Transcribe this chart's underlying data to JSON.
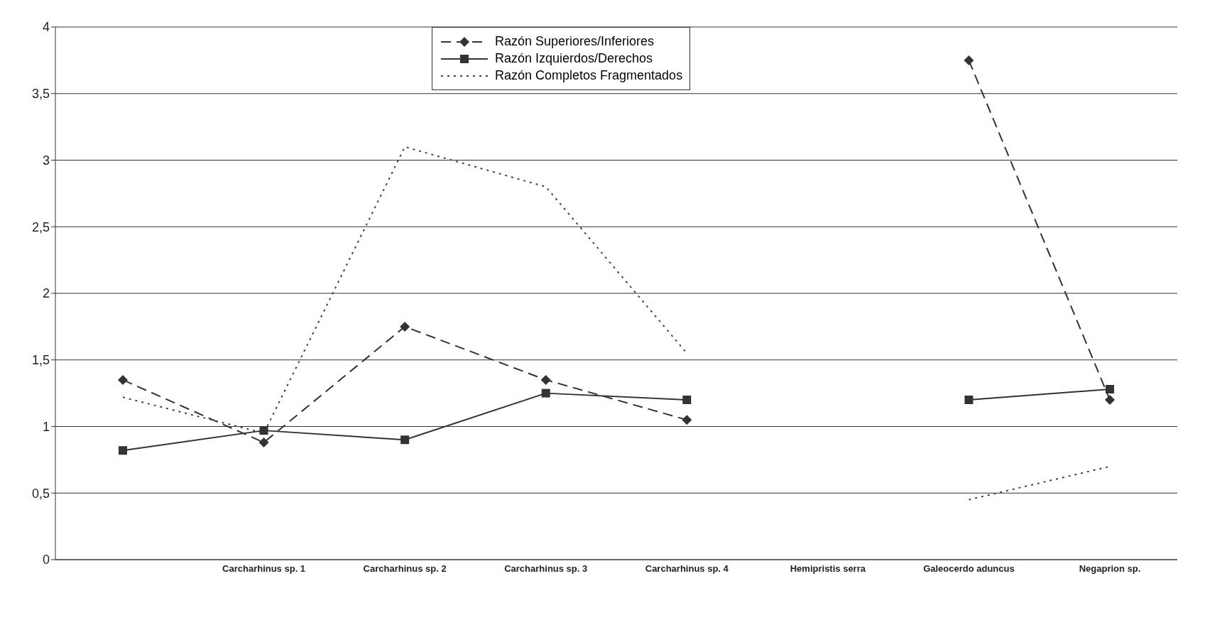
{
  "chart_data": {
    "type": "line",
    "categories": [
      null,
      "Carcharhinus sp. 1",
      "Carcharhinus sp. 2",
      "Carcharhinus sp. 3",
      "Carcharhinus sp. 4",
      "Hemipristis serra",
      "Galeocerdo aduncus",
      "Negaprion sp."
    ],
    "series": [
      {
        "name": "Razón Superiores/Inferiores",
        "color": "#333333",
        "marker": "diamond",
        "line_style": "dashed",
        "values": [
          1.35,
          0.88,
          1.75,
          1.35,
          1.05,
          null,
          3.75,
          1.2
        ]
      },
      {
        "name": "Razón Izquierdos/Derechos",
        "color": "#333333",
        "marker": "square",
        "line_style": "solid",
        "values": [
          0.82,
          0.97,
          0.9,
          1.25,
          1.2,
          null,
          1.2,
          1.28
        ]
      },
      {
        "name": "Razón Completos Fragmentados",
        "color": "#444444",
        "marker": "none",
        "line_style": "dotted",
        "values": [
          1.22,
          0.95,
          3.1,
          2.8,
          1.55,
          null,
          0.45,
          0.7
        ]
      }
    ],
    "ylim": [
      0,
      4
    ],
    "yticks": [
      0,
      {
        "value": 0.5,
        "label": "0,5"
      },
      1,
      {
        "value": 1.5,
        "label": "1,5"
      },
      2,
      {
        "value": 2.5,
        "label": "2,5"
      },
      3,
      {
        "value": 3.5,
        "label": "3,5"
      },
      4
    ],
    "grid": "y",
    "legend": "top"
  }
}
